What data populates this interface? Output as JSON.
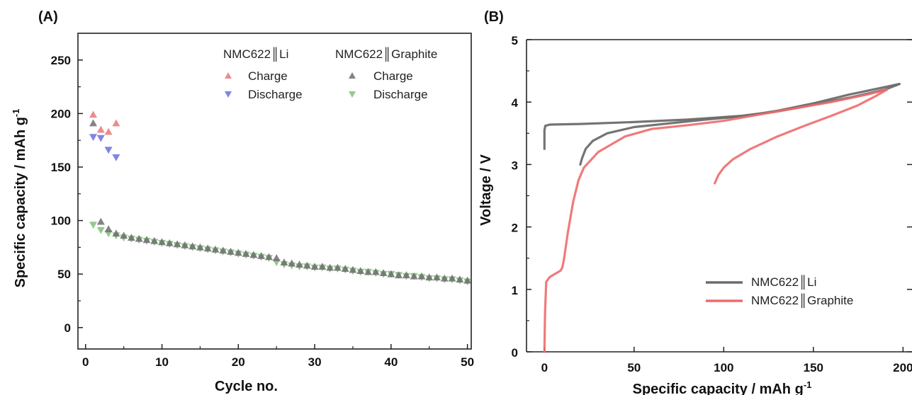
{
  "chart_data": [
    {
      "panel": "(A)",
      "type": "scatter",
      "xlabel": "Cycle no.",
      "ylabel": "Specific capacity / mAh g",
      "ylabel_superscript": "-1",
      "xlim": [
        -1,
        50.5
      ],
      "ylim": [
        -20,
        275
      ],
      "xticks": [
        0,
        10,
        20,
        30,
        40,
        50
      ],
      "yticks": [
        0,
        50,
        100,
        150,
        200,
        250
      ],
      "legend_groups": [
        {
          "title": "NMC622║Li",
          "entries": [
            {
              "name": "Charge",
              "series_index": 0
            },
            {
              "name": "Discharge",
              "series_index": 1
            }
          ]
        },
        {
          "title": "NMC622║Graphite",
          "entries": [
            {
              "name": "Charge",
              "series_index": 2
            },
            {
              "name": "Discharge",
              "series_index": 3
            }
          ]
        }
      ],
      "series": [
        {
          "name": "Charge",
          "cell": "NMC622║Li",
          "marker": "triangle-up",
          "color": "#e8787a",
          "x": [
            1,
            2,
            3,
            4
          ],
          "y": [
            199,
            185,
            183,
            191
          ]
        },
        {
          "name": "Discharge",
          "cell": "NMC622║Li",
          "marker": "triangle-down",
          "color": "#6b6fe0",
          "x": [
            1,
            2,
            3,
            4
          ],
          "y": [
            178,
            177,
            166,
            159
          ]
        },
        {
          "name": "Charge",
          "cell": "NMC622║Graphite",
          "marker": "triangle-up",
          "color": "#6f6f6f",
          "x": [
            1,
            2,
            3,
            4,
            5,
            6,
            7,
            8,
            9,
            10,
            11,
            12,
            13,
            14,
            15,
            16,
            17,
            18,
            19,
            20,
            21,
            22,
            23,
            24,
            25,
            26,
            27,
            28,
            29,
            30,
            31,
            32,
            33,
            34,
            35,
            36,
            37,
            38,
            39,
            40,
            41,
            42,
            43,
            44,
            45,
            46,
            47,
            48,
            49,
            50
          ],
          "y": [
            191,
            99,
            92,
            88,
            86,
            84,
            83,
            82,
            81,
            80,
            79,
            78,
            77,
            76,
            75,
            74,
            73,
            72,
            71,
            70,
            69,
            68,
            67,
            66,
            65,
            61,
            60,
            59,
            58,
            57,
            57,
            56,
            56,
            55,
            54,
            53,
            52,
            52,
            51,
            50,
            49,
            49,
            48,
            48,
            47,
            47,
            46,
            46,
            45,
            44
          ]
        },
        {
          "name": "Discharge",
          "cell": "NMC622║Graphite",
          "marker": "triangle-down",
          "color": "#7fbf7a",
          "x": [
            1,
            2,
            3,
            4,
            5,
            6,
            7,
            8,
            9,
            10,
            11,
            12,
            13,
            14,
            15,
            16,
            17,
            18,
            19,
            20,
            21,
            22,
            23,
            24,
            25,
            26,
            27,
            28,
            29,
            30,
            31,
            32,
            33,
            34,
            35,
            36,
            37,
            38,
            39,
            40,
            41,
            42,
            43,
            44,
            45,
            46,
            47,
            48,
            49,
            50
          ],
          "y": [
            96,
            91,
            88,
            86,
            84,
            83,
            82,
            81,
            80,
            79,
            78,
            77,
            76,
            75,
            74,
            73,
            72,
            71,
            70,
            69,
            68,
            67,
            66,
            65,
            61,
            59,
            58,
            57,
            57,
            56,
            56,
            55,
            55,
            54,
            53,
            52,
            52,
            51,
            50,
            50,
            49,
            48,
            48,
            47,
            46,
            46,
            45,
            45,
            44,
            43
          ]
        }
      ]
    },
    {
      "panel": "(B)",
      "type": "line",
      "xlabel": "Specific capacity / mAh g",
      "xlabel_superscript": "-1",
      "ylabel": "Voltage / V",
      "xlim": [
        -10,
        205
      ],
      "ylim": [
        0,
        5
      ],
      "xticks": [
        0,
        50,
        100,
        150,
        200
      ],
      "yticks": [
        0,
        1,
        2,
        3,
        4,
        5
      ],
      "legend": "bottom-right",
      "series": [
        {
          "name": "NMC622║Li",
          "color": "#6d6d6d",
          "segments": [
            [
              [
                0,
                3.25
              ],
              [
                0,
                3.55
              ],
              [
                0.5,
                3.62
              ],
              [
                3,
                3.64
              ],
              [
                20,
                3.65
              ],
              [
                50,
                3.68
              ],
              [
                80,
                3.72
              ],
              [
                110,
                3.78
              ],
              [
                130,
                3.85
              ],
              [
                150,
                3.96
              ],
              [
                170,
                4.07
              ],
              [
                190,
                4.2
              ],
              [
                198,
                4.29
              ]
            ],
            [
              [
                198,
                4.29
              ],
              [
                190,
                4.24
              ],
              [
                170,
                4.12
              ],
              [
                150,
                3.98
              ],
              [
                130,
                3.86
              ],
              [
                110,
                3.77
              ],
              [
                90,
                3.72
              ],
              [
                70,
                3.66
              ],
              [
                50,
                3.6
              ],
              [
                35,
                3.5
              ],
              [
                27,
                3.38
              ],
              [
                23,
                3.25
              ],
              [
                21,
                3.1
              ],
              [
                20,
                3.0
              ]
            ]
          ]
        },
        {
          "name": "NMC622║Graphite",
          "color": "#ee6b6b",
          "segments": [
            [
              [
                0,
                0
              ],
              [
                0.3,
                0.6
              ],
              [
                1,
                1.12
              ],
              [
                3,
                1.2
              ],
              [
                6,
                1.25
              ],
              [
                9,
                1.3
              ],
              [
                10,
                1.35
              ],
              [
                11,
                1.5
              ],
              [
                13,
                1.9
              ],
              [
                16,
                2.4
              ],
              [
                19,
                2.75
              ],
              [
                22,
                2.95
              ],
              [
                30,
                3.2
              ],
              [
                45,
                3.45
              ],
              [
                60,
                3.57
              ],
              [
                80,
                3.63
              ],
              [
                100,
                3.7
              ],
              [
                120,
                3.8
              ],
              [
                140,
                3.9
              ],
              [
                160,
                4.0
              ],
              [
                180,
                4.12
              ],
              [
                191,
                4.2
              ]
            ],
            [
              [
                191,
                4.2
              ],
              [
                185,
                4.1
              ],
              [
                175,
                3.95
              ],
              [
                160,
                3.78
              ],
              [
                145,
                3.62
              ],
              [
                130,
                3.45
              ],
              [
                115,
                3.25
              ],
              [
                105,
                3.08
              ],
              [
                100,
                2.95
              ],
              [
                97,
                2.83
              ],
              [
                95,
                2.7
              ]
            ]
          ]
        }
      ]
    }
  ]
}
